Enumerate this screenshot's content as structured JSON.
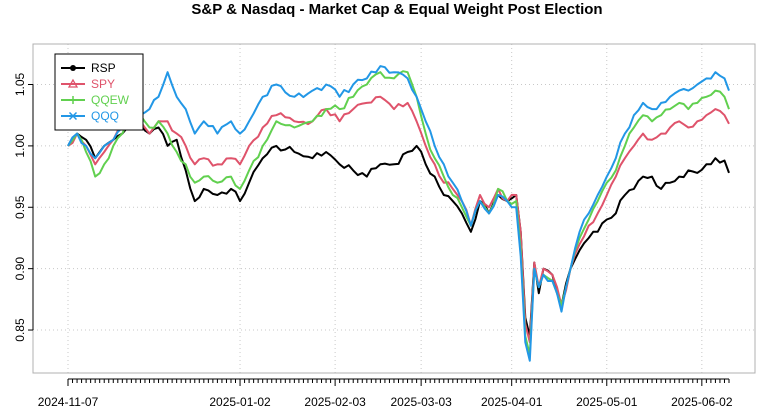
{
  "chart_data": {
    "type": "line",
    "title": "S&P & Nasdaq - Market Cap & Equal Weight Post Election",
    "xlabel": "",
    "ylabel": "",
    "ylim": [
      0.815,
      1.083
    ],
    "y_ticks": [
      0.85,
      0.9,
      0.95,
      1.0,
      1.05
    ],
    "y_tick_labels": [
      "0.85",
      "0.90",
      "0.95",
      "1.00",
      "1.05"
    ],
    "x_tick_labels": [
      "2024-11-07",
      "2025-01-02",
      "2025-02-03",
      "2025-03-03",
      "2025-04-01",
      "2025-05-01",
      "2025-06-02"
    ],
    "x_tick_positions": [
      0,
      38,
      59,
      78,
      98,
      119,
      140
    ],
    "n_points": 147,
    "grid": true,
    "legend_position": "top-left",
    "series": [
      {
        "name": "RSP",
        "color": "#000000",
        "marker": "circle",
        "anchors": [
          [
            0,
            1.0
          ],
          [
            2,
            1.01
          ],
          [
            4,
            1.005
          ],
          [
            6,
            0.99
          ],
          [
            8,
            1.0
          ],
          [
            10,
            1.005
          ],
          [
            12,
            1.01
          ],
          [
            14,
            1.02
          ],
          [
            16,
            1.018
          ],
          [
            18,
            1.01
          ],
          [
            20,
            1.015
          ],
          [
            22,
            1.0
          ],
          [
            24,
            1.005
          ],
          [
            26,
            0.98
          ],
          [
            28,
            0.955
          ],
          [
            30,
            0.965
          ],
          [
            33,
            0.96
          ],
          [
            36,
            0.965
          ],
          [
            38,
            0.955
          ],
          [
            40,
            0.97
          ],
          [
            43,
            0.99
          ],
          [
            46,
            1.0
          ],
          [
            50,
            0.995
          ],
          [
            54,
            0.99
          ],
          [
            57,
            0.995
          ],
          [
            60,
            0.985
          ],
          [
            63,
            0.98
          ],
          [
            66,
            0.975
          ],
          [
            69,
            0.985
          ],
          [
            72,
            0.985
          ],
          [
            75,
            0.995
          ],
          [
            77,
            1.0
          ],
          [
            79,
            0.985
          ],
          [
            81,
            0.975
          ],
          [
            83,
            0.96
          ],
          [
            85,
            0.955
          ],
          [
            87,
            0.945
          ],
          [
            89,
            0.93
          ],
          [
            91,
            0.955
          ],
          [
            93,
            0.945
          ],
          [
            95,
            0.96
          ],
          [
            97,
            0.955
          ],
          [
            99,
            0.96
          ],
          [
            100,
            0.93
          ],
          [
            101,
            0.86
          ],
          [
            102,
            0.845
          ],
          [
            103,
            0.905
          ],
          [
            104,
            0.88
          ],
          [
            105,
            0.9
          ],
          [
            107,
            0.895
          ],
          [
            108,
            0.88
          ],
          [
            109,
            0.87
          ],
          [
            111,
            0.9
          ],
          [
            113,
            0.915
          ],
          [
            115,
            0.925
          ],
          [
            117,
            0.93
          ],
          [
            119,
            0.94
          ],
          [
            121,
            0.945
          ],
          [
            123,
            0.96
          ],
          [
            125,
            0.965
          ],
          [
            127,
            0.975
          ],
          [
            129,
            0.975
          ],
          [
            131,
            0.965
          ],
          [
            133,
            0.97
          ],
          [
            135,
            0.975
          ],
          [
            137,
            0.98
          ],
          [
            139,
            0.978
          ],
          [
            141,
            0.985
          ],
          [
            143,
            0.99
          ],
          [
            145,
            0.988
          ],
          [
            146,
            0.978
          ]
        ]
      },
      {
        "name": "SPY",
        "color": "#DF536B",
        "marker": "triangle",
        "anchors": [
          [
            0,
            1.0
          ],
          [
            2,
            1.01
          ],
          [
            4,
            1.0
          ],
          [
            6,
            0.985
          ],
          [
            8,
            0.995
          ],
          [
            10,
            1.005
          ],
          [
            12,
            1.015
          ],
          [
            14,
            1.025
          ],
          [
            16,
            1.02
          ],
          [
            18,
            1.01
          ],
          [
            20,
            1.02
          ],
          [
            22,
            1.02
          ],
          [
            24,
            1.01
          ],
          [
            26,
            1.0
          ],
          [
            28,
            0.985
          ],
          [
            30,
            0.99
          ],
          [
            33,
            0.985
          ],
          [
            36,
            0.99
          ],
          [
            38,
            0.985
          ],
          [
            40,
            1.0
          ],
          [
            43,
            1.015
          ],
          [
            46,
            1.025
          ],
          [
            50,
            1.02
          ],
          [
            54,
            1.02
          ],
          [
            57,
            1.03
          ],
          [
            60,
            1.02
          ],
          [
            63,
            1.03
          ],
          [
            66,
            1.035
          ],
          [
            69,
            1.04
          ],
          [
            72,
            1.03
          ],
          [
            75,
            1.035
          ],
          [
            77,
            1.02
          ],
          [
            79,
            1.0
          ],
          [
            81,
            0.985
          ],
          [
            83,
            0.97
          ],
          [
            85,
            0.965
          ],
          [
            87,
            0.955
          ],
          [
            89,
            0.935
          ],
          [
            91,
            0.96
          ],
          [
            93,
            0.95
          ],
          [
            95,
            0.965
          ],
          [
            97,
            0.955
          ],
          [
            99,
            0.96
          ],
          [
            100,
            0.93
          ],
          [
            101,
            0.855
          ],
          [
            102,
            0.84
          ],
          [
            103,
            0.905
          ],
          [
            104,
            0.885
          ],
          [
            105,
            0.9
          ],
          [
            107,
            0.895
          ],
          [
            108,
            0.885
          ],
          [
            109,
            0.87
          ],
          [
            111,
            0.9
          ],
          [
            113,
            0.92
          ],
          [
            115,
            0.935
          ],
          [
            117,
            0.945
          ],
          [
            119,
            0.96
          ],
          [
            121,
            0.975
          ],
          [
            123,
            0.99
          ],
          [
            125,
            1.0
          ],
          [
            127,
            1.01
          ],
          [
            129,
            1.005
          ],
          [
            131,
            1.01
          ],
          [
            133,
            1.015
          ],
          [
            135,
            1.02
          ],
          [
            137,
            1.015
          ],
          [
            139,
            1.02
          ],
          [
            141,
            1.025
          ],
          [
            143,
            1.03
          ],
          [
            145,
            1.025
          ],
          [
            146,
            1.018
          ]
        ]
      },
      {
        "name": "QQEW",
        "color": "#61D04F",
        "marker": "plus",
        "anchors": [
          [
            0,
            1.0
          ],
          [
            2,
            1.01
          ],
          [
            4,
            0.995
          ],
          [
            6,
            0.975
          ],
          [
            8,
            0.985
          ],
          [
            10,
            1.0
          ],
          [
            12,
            1.01
          ],
          [
            14,
            1.03
          ],
          [
            16,
            1.025
          ],
          [
            18,
            1.015
          ],
          [
            20,
            1.02
          ],
          [
            22,
            1.01
          ],
          [
            24,
            0.995
          ],
          [
            26,
            0.985
          ],
          [
            28,
            0.97
          ],
          [
            30,
            0.975
          ],
          [
            33,
            0.97
          ],
          [
            36,
            0.975
          ],
          [
            38,
            0.965
          ],
          [
            40,
            0.98
          ],
          [
            43,
            1.0
          ],
          [
            46,
            1.02
          ],
          [
            50,
            1.015
          ],
          [
            54,
            1.02
          ],
          [
            57,
            1.03
          ],
          [
            60,
            1.03
          ],
          [
            63,
            1.04
          ],
          [
            66,
            1.05
          ],
          [
            69,
            1.06
          ],
          [
            72,
            1.055
          ],
          [
            75,
            1.06
          ],
          [
            77,
            1.04
          ],
          [
            79,
            1.01
          ],
          [
            81,
            0.99
          ],
          [
            83,
            0.975
          ],
          [
            85,
            0.96
          ],
          [
            87,
            0.95
          ],
          [
            89,
            0.935
          ],
          [
            91,
            0.955
          ],
          [
            93,
            0.945
          ],
          [
            95,
            0.965
          ],
          [
            97,
            0.955
          ],
          [
            99,
            0.955
          ],
          [
            100,
            0.915
          ],
          [
            101,
            0.845
          ],
          [
            102,
            0.83
          ],
          [
            103,
            0.9
          ],
          [
            104,
            0.885
          ],
          [
            105,
            0.895
          ],
          [
            107,
            0.89
          ],
          [
            108,
            0.88
          ],
          [
            109,
            0.87
          ],
          [
            111,
            0.9
          ],
          [
            113,
            0.925
          ],
          [
            115,
            0.94
          ],
          [
            117,
            0.955
          ],
          [
            119,
            0.97
          ],
          [
            121,
            0.98
          ],
          [
            123,
            1.0
          ],
          [
            125,
            1.015
          ],
          [
            127,
            1.025
          ],
          [
            129,
            1.02
          ],
          [
            131,
            1.025
          ],
          [
            133,
            1.03
          ],
          [
            135,
            1.035
          ],
          [
            137,
            1.03
          ],
          [
            139,
            1.035
          ],
          [
            141,
            1.04
          ],
          [
            143,
            1.045
          ],
          [
            145,
            1.04
          ],
          [
            146,
            1.03
          ]
        ]
      },
      {
        "name": "QQQ",
        "color": "#2297E6",
        "marker": "cross",
        "anchors": [
          [
            0,
            1.0
          ],
          [
            2,
            1.01
          ],
          [
            4,
            1.0
          ],
          [
            6,
            0.99
          ],
          [
            8,
            1.0
          ],
          [
            10,
            1.005
          ],
          [
            12,
            1.015
          ],
          [
            14,
            1.03
          ],
          [
            16,
            1.025
          ],
          [
            18,
            1.03
          ],
          [
            20,
            1.04
          ],
          [
            22,
            1.06
          ],
          [
            24,
            1.04
          ],
          [
            26,
            1.03
          ],
          [
            28,
            1.01
          ],
          [
            30,
            1.02
          ],
          [
            33,
            1.01
          ],
          [
            36,
            1.02
          ],
          [
            38,
            1.01
          ],
          [
            40,
            1.02
          ],
          [
            43,
            1.04
          ],
          [
            46,
            1.05
          ],
          [
            50,
            1.04
          ],
          [
            54,
            1.045
          ],
          [
            57,
            1.05
          ],
          [
            60,
            1.04
          ],
          [
            63,
            1.05
          ],
          [
            66,
            1.055
          ],
          [
            69,
            1.065
          ],
          [
            72,
            1.06
          ],
          [
            75,
            1.055
          ],
          [
            77,
            1.04
          ],
          [
            79,
            1.02
          ],
          [
            81,
            1.0
          ],
          [
            83,
            0.985
          ],
          [
            85,
            0.97
          ],
          [
            87,
            0.955
          ],
          [
            89,
            0.935
          ],
          [
            91,
            0.955
          ],
          [
            93,
            0.945
          ],
          [
            95,
            0.96
          ],
          [
            97,
            0.955
          ],
          [
            99,
            0.95
          ],
          [
            100,
            0.91
          ],
          [
            101,
            0.84
          ],
          [
            102,
            0.825
          ],
          [
            103,
            0.9
          ],
          [
            104,
            0.885
          ],
          [
            105,
            0.895
          ],
          [
            107,
            0.89
          ],
          [
            108,
            0.88
          ],
          [
            109,
            0.865
          ],
          [
            111,
            0.9
          ],
          [
            113,
            0.93
          ],
          [
            115,
            0.945
          ],
          [
            117,
            0.96
          ],
          [
            119,
            0.975
          ],
          [
            121,
            0.99
          ],
          [
            123,
            1.01
          ],
          [
            125,
            1.025
          ],
          [
            127,
            1.035
          ],
          [
            129,
            1.03
          ],
          [
            131,
            1.035
          ],
          [
            133,
            1.04
          ],
          [
            135,
            1.045
          ],
          [
            137,
            1.045
          ],
          [
            139,
            1.05
          ],
          [
            141,
            1.055
          ],
          [
            143,
            1.06
          ],
          [
            145,
            1.055
          ],
          [
            146,
            1.045
          ]
        ]
      }
    ]
  }
}
